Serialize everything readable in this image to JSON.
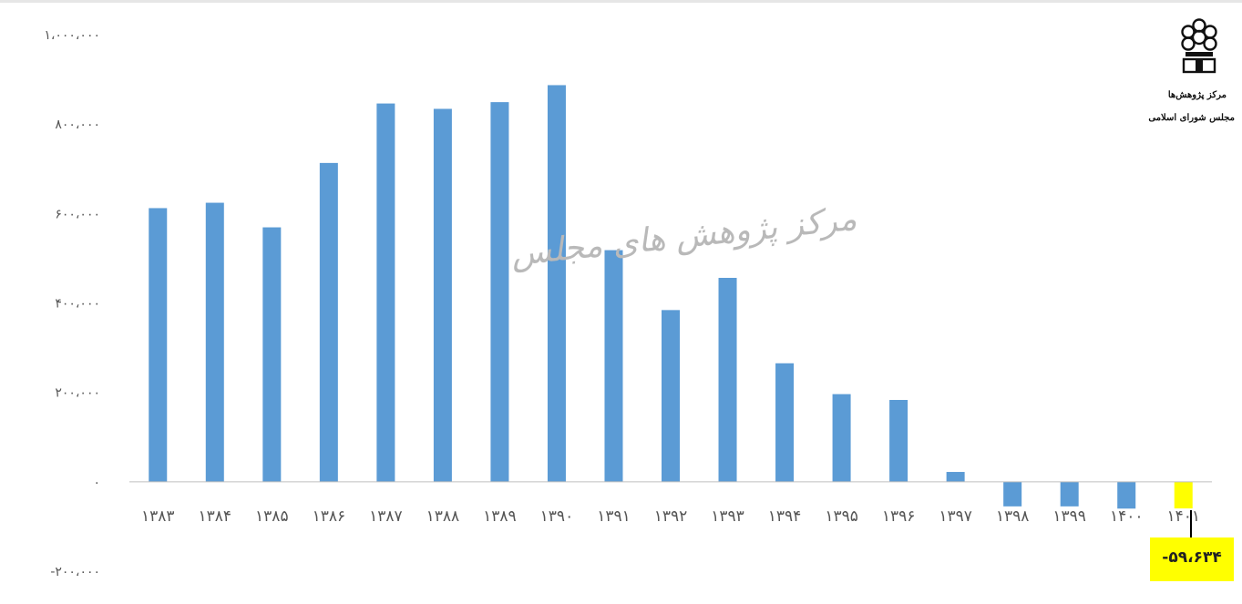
{
  "logo": {
    "line1": "مرکز پژوهش‌ها",
    "line2": "مجلس شورای اسلامی"
  },
  "watermark": "مرکز پژوهش های مجلس",
  "callout": {
    "text": "-۵۹،۶۳۴",
    "highlight_color": "#ffff00"
  },
  "chart_data": {
    "type": "bar",
    "bar_color": "#5b9bd5",
    "highlight_bar_color": "#ffff00",
    "highlight_index": 18,
    "title": "",
    "xlabel": "",
    "ylabel": "",
    "ylim": [
      -200000,
      1000000
    ],
    "yticks": [
      -200000,
      0,
      200000,
      400000,
      600000,
      800000,
      1000000
    ],
    "ytick_labels": [
      "-۲۰۰،۰۰۰",
      "۰",
      "۲۰۰،۰۰۰",
      "۴۰۰،۰۰۰",
      "۶۰۰،۰۰۰",
      "۸۰۰،۰۰۰",
      "۱،۰۰۰،۰۰۰"
    ],
    "categories": [
      "۱۳۸۳",
      "۱۳۸۴",
      "۱۳۸۵",
      "۱۳۸۶",
      "۱۳۸۷",
      "۱۳۸۸",
      "۱۳۸۹",
      "۱۳۹۰",
      "۱۳۹۱",
      "۱۳۹۲",
      "۱۳۹۳",
      "۱۳۹۴",
      "۱۳۹۵",
      "۱۳۹۶",
      "۱۳۹۷",
      "۱۳۹۸",
      "۱۳۹۹",
      "۱۴۰۰",
      "۱۴۰۱"
    ],
    "values": [
      612000,
      624000,
      569000,
      713000,
      846000,
      834000,
      849000,
      887000,
      518000,
      384000,
      456000,
      265000,
      196000,
      183000,
      22000,
      -55000,
      -55000,
      -60000,
      -59634
    ],
    "grid": false,
    "legend": "none"
  }
}
